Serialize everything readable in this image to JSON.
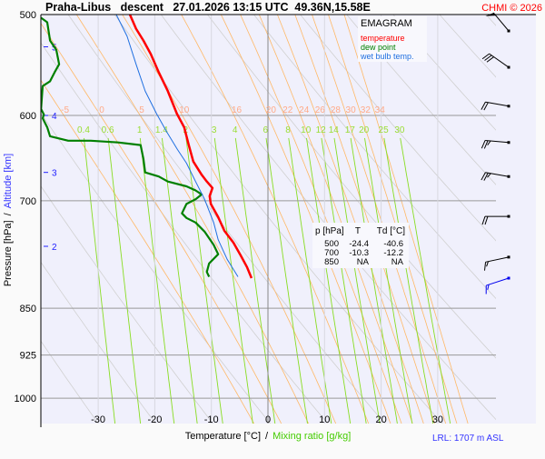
{
  "chart_data": {
    "type": "line",
    "title": "Praha-Libus   descent   27.01.2026 13:15 UTC  49.36N,15.58E",
    "copyright": "CHMI © 2026",
    "diagram_label": "EMAGRAM",
    "xlabel": "Temperature [°C]",
    "xlabel_sep": "/",
    "xlabel2": "Mixing ratio [g/kg]",
    "ylabel": "Pressure [hPa]",
    "ylabel_sep": "/",
    "ylabel2": "Altitude [km]",
    "lrl_text": "LRL: 1707 m ASL",
    "xlim": [
      -40,
      40
    ],
    "ylim_hpa": [
      500,
      1047
    ],
    "x_ticks": [
      -30,
      -20,
      -10,
      0,
      10,
      20,
      30
    ],
    "p_ticks": [
      500,
      600,
      700,
      850,
      925,
      1000
    ],
    "altitude_ticks": [
      {
        "km": "5",
        "p": 530
      },
      {
        "km": "4",
        "p": 600
      },
      {
        "km": "3",
        "p": 665
      },
      {
        "km": "2",
        "p": 760
      }
    ],
    "mixing_ratio_labels": [
      0.4,
      0.6,
      1,
      1.4,
      2,
      3,
      4,
      6,
      8,
      10,
      12,
      14,
      17,
      20,
      25,
      30
    ],
    "moist_adiabat_labels": [
      -5,
      0,
      5,
      10,
      16,
      20,
      22,
      24,
      26,
      28,
      30,
      32,
      34
    ],
    "colors": {
      "temperature": "#ff0000",
      "dew_point": "#008000",
      "wet_bulb": "#1f6fe0",
      "mixing": "#88dd22",
      "moist": "#ffb866",
      "dry": "#d0d0d0",
      "wind": "#000000",
      "wind_low": "#0000ee"
    },
    "legend": [
      "temperature",
      "dew point",
      "wet bulb temp."
    ],
    "series": [
      {
        "name": "temperature",
        "points": [
          [
            500,
            -24.4
          ],
          [
            513,
            -23.3
          ],
          [
            524,
            -22.0
          ],
          [
            537,
            -20.7
          ],
          [
            555,
            -19.3
          ],
          [
            574,
            -17.7
          ],
          [
            598,
            -16.1
          ],
          [
            613,
            -14.8
          ],
          [
            633,
            -14.0
          ],
          [
            652,
            -13.2
          ],
          [
            668,
            -11.7
          ],
          [
            676,
            -10.8
          ],
          [
            684,
            -9.8
          ],
          [
            694,
            -10.3
          ],
          [
            704,
            -10.1
          ],
          [
            721,
            -8.8
          ],
          [
            739,
            -7.7
          ],
          [
            755,
            -6.1
          ],
          [
            773,
            -4.8
          ],
          [
            789,
            -3.7
          ],
          [
            805,
            -2.9
          ]
        ]
      },
      {
        "name": "dew point",
        "points": [
          [
            503,
            -40.1
          ],
          [
            507,
            -39.0
          ],
          [
            524,
            -38.5
          ],
          [
            533,
            -37.4
          ],
          [
            547,
            -36.9
          ],
          [
            555,
            -37.7
          ],
          [
            564,
            -38.5
          ],
          [
            569,
            -39.8
          ],
          [
            593,
            -40.1
          ],
          [
            599,
            -39.6
          ],
          [
            603,
            -39.8
          ],
          [
            613,
            -39.0
          ],
          [
            623,
            -38.5
          ],
          [
            628,
            -35.3
          ],
          [
            628,
            -31.3
          ],
          [
            630,
            -26.5
          ],
          [
            633,
            -22.5
          ],
          [
            649,
            -22.0
          ],
          [
            665,
            -21.7
          ],
          [
            670,
            -19.3
          ],
          [
            676,
            -17.7
          ],
          [
            682,
            -14.4
          ],
          [
            687,
            -12.8
          ],
          [
            692,
            -11.7
          ],
          [
            698,
            -12.8
          ],
          [
            704,
            -14.4
          ],
          [
            716,
            -15.2
          ],
          [
            722,
            -14.4
          ],
          [
            728,
            -12.8
          ],
          [
            740,
            -11.2
          ],
          [
            758,
            -9.6
          ],
          [
            771,
            -8.8
          ],
          [
            784,
            -10.4
          ],
          [
            796,
            -10.8
          ],
          [
            803,
            -10.4
          ]
        ]
      },
      {
        "name": "wet bulb temp.",
        "points": [
          [
            500,
            -26.8
          ],
          [
            520,
            -24.9
          ],
          [
            547,
            -23.3
          ],
          [
            574,
            -21.7
          ],
          [
            598,
            -19.7
          ],
          [
            618,
            -17.9
          ],
          [
            638,
            -16.0
          ],
          [
            654,
            -14.4
          ],
          [
            676,
            -12.8
          ],
          [
            698,
            -11.2
          ],
          [
            728,
            -9.6
          ],
          [
            751,
            -8.8
          ],
          [
            778,
            -7.2
          ],
          [
            803,
            -5.3
          ]
        ]
      }
    ],
    "table": {
      "headers": [
        "p [hPa]",
        "T",
        "Td [°C]"
      ],
      "rows": [
        [
          "500",
          "-24.4",
          "-40.6"
        ],
        [
          "700",
          "-10.3",
          "-12.2"
        ],
        [
          "850",
          "NA",
          "NA"
        ]
      ]
    },
    "winds": [
      {
        "p": 515,
        "dir": 320,
        "kt": 50,
        "low": false
      },
      {
        "p": 550,
        "dir": 305,
        "kt": 30,
        "low": false
      },
      {
        "p": 590,
        "dir": 280,
        "kt": 20,
        "low": false
      },
      {
        "p": 630,
        "dir": 275,
        "kt": 25,
        "low": false
      },
      {
        "p": 670,
        "dir": 280,
        "kt": 25,
        "low": false
      },
      {
        "p": 720,
        "dir": 270,
        "kt": 20,
        "low": false
      },
      {
        "p": 775,
        "dir": 258,
        "kt": 15,
        "low": false
      },
      {
        "p": 805,
        "dir": 252,
        "kt": 15,
        "low": true
      }
    ]
  }
}
